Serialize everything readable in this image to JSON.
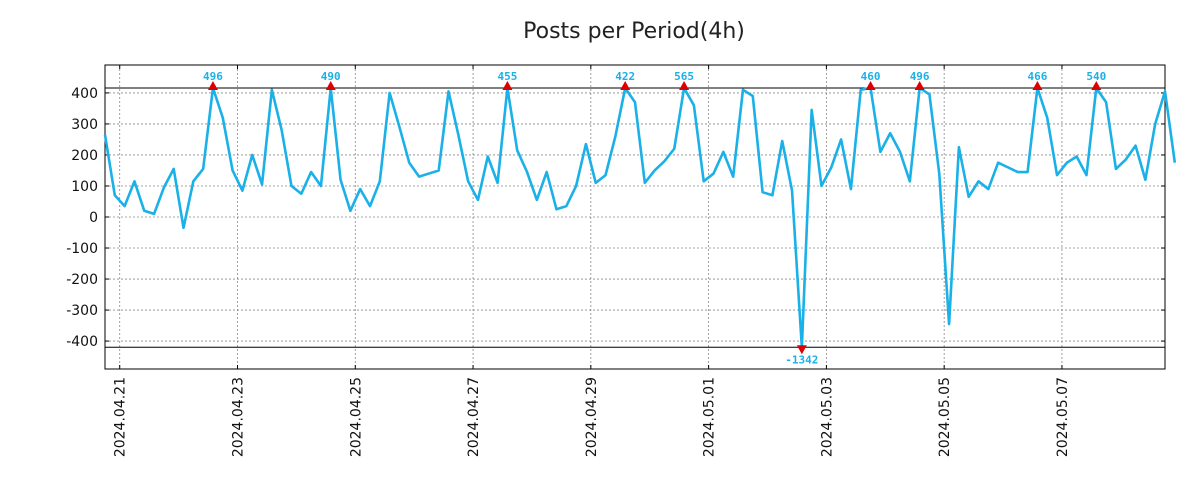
{
  "chart_data": {
    "type": "line",
    "title": "Posts per Period(4h)",
    "xlabel": "",
    "ylabel": "",
    "ylim": [
      -490,
      490
    ],
    "yticks": [
      -400,
      -300,
      -200,
      -100,
      0,
      100,
      200,
      300,
      400
    ],
    "ytick_labels": [
      "-400",
      "-300",
      "-200",
      "-100",
      "0",
      "100",
      "200",
      "300",
      "400"
    ],
    "xlim": [
      0,
      108
    ],
    "xticks": [
      1.5,
      13.5,
      25.5,
      37.5,
      49.5,
      61.5,
      73.5,
      85.5,
      97.5
    ],
    "xtick_labels": [
      "2024.04.21",
      "2024.04.23",
      "2024.04.25",
      "2024.04.27",
      "2024.04.29",
      "2024.05.01",
      "2024.05.03",
      "2024.05.05",
      "2024.05.07"
    ],
    "grid": true,
    "clip_upper": 416,
    "clip_lower": -420,
    "line_color": "#1ab0e8",
    "marker_color": "#dd0000",
    "series": [
      {
        "name": "posts",
        "values": [
          265,
          70,
          35,
          115,
          20,
          10,
          95,
          155,
          -35,
          115,
          155,
          416,
          320,
          150,
          85,
          200,
          105,
          410,
          280,
          100,
          75,
          145,
          100,
          416,
          120,
          20,
          90,
          35,
          115,
          400,
          290,
          175,
          130,
          140,
          150,
          405,
          265,
          115,
          55,
          195,
          110,
          416,
          215,
          145,
          55,
          145,
          25,
          35,
          100,
          235,
          110,
          135,
          260,
          416,
          370,
          110,
          150,
          180,
          220,
          416,
          360,
          115,
          140,
          210,
          130,
          410,
          390,
          80,
          70,
          245,
          85,
          -420,
          345,
          100,
          160,
          250,
          90,
          410,
          416,
          210,
          270,
          210,
          115,
          416,
          395,
          140,
          -345,
          225,
          65,
          115,
          90,
          175,
          160,
          145,
          145,
          416,
          320,
          135,
          175,
          195,
          135,
          416,
          370,
          155,
          185,
          230,
          120,
          300,
          405,
          175
        ]
      }
    ],
    "peaks": [
      {
        "x": 11,
        "value": 496,
        "label": "496",
        "direction": "up"
      },
      {
        "x": 23,
        "value": 490,
        "label": "490",
        "direction": "up"
      },
      {
        "x": 41,
        "value": 455,
        "label": "455",
        "direction": "up"
      },
      {
        "x": 53,
        "value": 422,
        "label": "422",
        "direction": "up"
      },
      {
        "x": 59,
        "value": 565,
        "label": "565",
        "direction": "up"
      },
      {
        "x": 71,
        "value": -1342,
        "label": "-1342",
        "direction": "down"
      },
      {
        "x": 78,
        "value": 460,
        "label": "460",
        "direction": "up"
      },
      {
        "x": 83,
        "value": 496,
        "label": "496",
        "direction": "up"
      },
      {
        "x": 95,
        "value": 466,
        "label": "466",
        "direction": "up"
      },
      {
        "x": 101,
        "value": 540,
        "label": "540",
        "direction": "up"
      }
    ]
  }
}
